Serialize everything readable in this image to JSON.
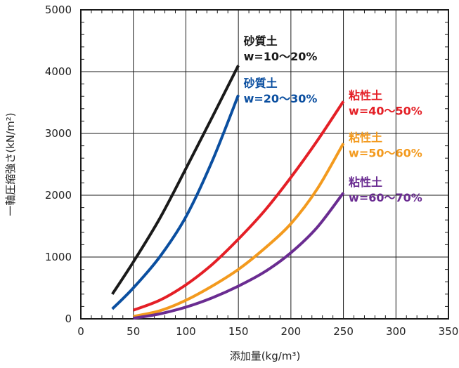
{
  "chart_data": {
    "type": "line",
    "title": "",
    "xlabel": "添加量(kg/m³)",
    "ylabel": "一軸圧縮強さ(kN/m²)",
    "xlim": [
      0,
      350
    ],
    "ylim": [
      0,
      5000
    ],
    "xticks": [
      "0",
      "50",
      "100",
      "150",
      "200",
      "250",
      "300",
      "350"
    ],
    "yticks": [
      "0",
      "1000",
      "2000",
      "3000",
      "4000",
      "5000"
    ],
    "grid": true,
    "series": [
      {
        "name_line1": "砂質土",
        "name_line2": "w=10～20%",
        "color": "#1a1a1a",
        "x": [
          30,
          50,
          75,
          100,
          125,
          150
        ],
        "y": [
          400,
          920,
          1620,
          2430,
          3260,
          4100
        ]
      },
      {
        "name_line1": "砂質土",
        "name_line2": "w=20～30%",
        "color": "#0b4fa0",
        "x": [
          30,
          50,
          75,
          100,
          125,
          150
        ],
        "y": [
          160,
          500,
          1000,
          1650,
          2550,
          3620
        ]
      },
      {
        "name_line1": "粘性土",
        "name_line2": "w=40～50%",
        "color": "#e41f26",
        "x": [
          50,
          75,
          100,
          125,
          150,
          175,
          200,
          225,
          250
        ],
        "y": [
          140,
          300,
          550,
          880,
          1290,
          1750,
          2290,
          2880,
          3520
        ]
      },
      {
        "name_line1": "粘性土",
        "name_line2": "w=50～60%",
        "color": "#f39a1e",
        "x": [
          50,
          75,
          100,
          125,
          150,
          175,
          200,
          225,
          250
        ],
        "y": [
          40,
          130,
          300,
          530,
          800,
          1140,
          1540,
          2100,
          2840
        ]
      },
      {
        "name_line1": "粘性土",
        "name_line2": "w=60～70%",
        "color": "#6a2c91",
        "x": [
          50,
          75,
          100,
          125,
          150,
          175,
          200,
          225,
          250
        ],
        "y": [
          10,
          80,
          190,
          340,
          530,
          760,
          1070,
          1480,
          2040
        ]
      }
    ]
  }
}
